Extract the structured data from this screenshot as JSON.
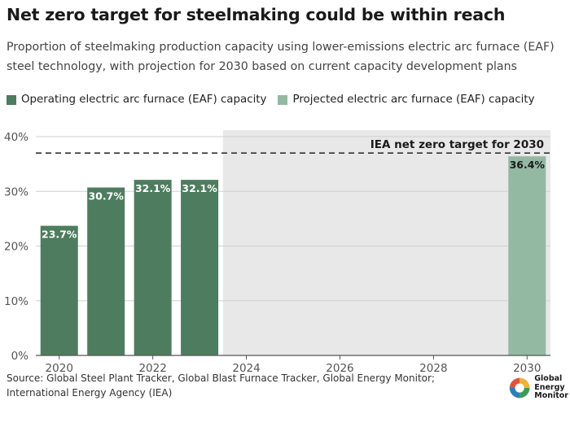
{
  "title": "Net zero target for steelmaking could be within reach",
  "subtitle": "Proportion of steelmaking production capacity using lower-emissions electric arc furnace (EAF) steel technology, with projection for 2030 based on current capacity development plans",
  "legend": [
    {
      "label": "Operating electric arc furnace (EAF) capacity",
      "color": "#4e7c5f"
    },
    {
      "label": "Projected electric arc furnace (EAF) capacity",
      "color": "#94b9a3"
    }
  ],
  "source": "Source: Global Steel Plant Tracker, Global Blast Furnace Tracker, Global Energy Monitor; International Energy Agency (IEA)",
  "logo": {
    "lines": [
      "Global",
      "Energy",
      "Monitor"
    ],
    "icon": "globe-icon"
  },
  "chart_data": {
    "type": "bar",
    "xlim": [
      2019.5,
      2030.5
    ],
    "ylim": [
      0,
      40
    ],
    "xticks": [
      2020,
      2022,
      2024,
      2026,
      2028,
      2030
    ],
    "yticks": [
      0,
      10,
      20,
      30,
      40
    ],
    "ytick_suffix": "%",
    "grid": true,
    "series": [
      {
        "name": "Operating electric arc furnace (EAF) capacity",
        "color": "#4e7c5f",
        "points": [
          {
            "x": 2020,
            "y": 23.7,
            "label": "23.7%"
          },
          {
            "x": 2021,
            "y": 30.7,
            "label": "30.7%"
          },
          {
            "x": 2022,
            "y": 32.1,
            "label": "32.1%"
          },
          {
            "x": 2023,
            "y": 32.1,
            "label": "32.1%"
          }
        ]
      },
      {
        "name": "Projected electric arc furnace (EAF) capacity",
        "color": "#94b9a3",
        "points": [
          {
            "x": 2030,
            "y": 36.4,
            "label": "36.4%"
          }
        ]
      }
    ],
    "projection_shading": {
      "from": 2023.5,
      "to": 2030.5,
      "color": "#e8e8e8"
    },
    "reference_line": {
      "y": 37,
      "label": "IEA net zero target for 2030",
      "style": "dashed"
    }
  }
}
